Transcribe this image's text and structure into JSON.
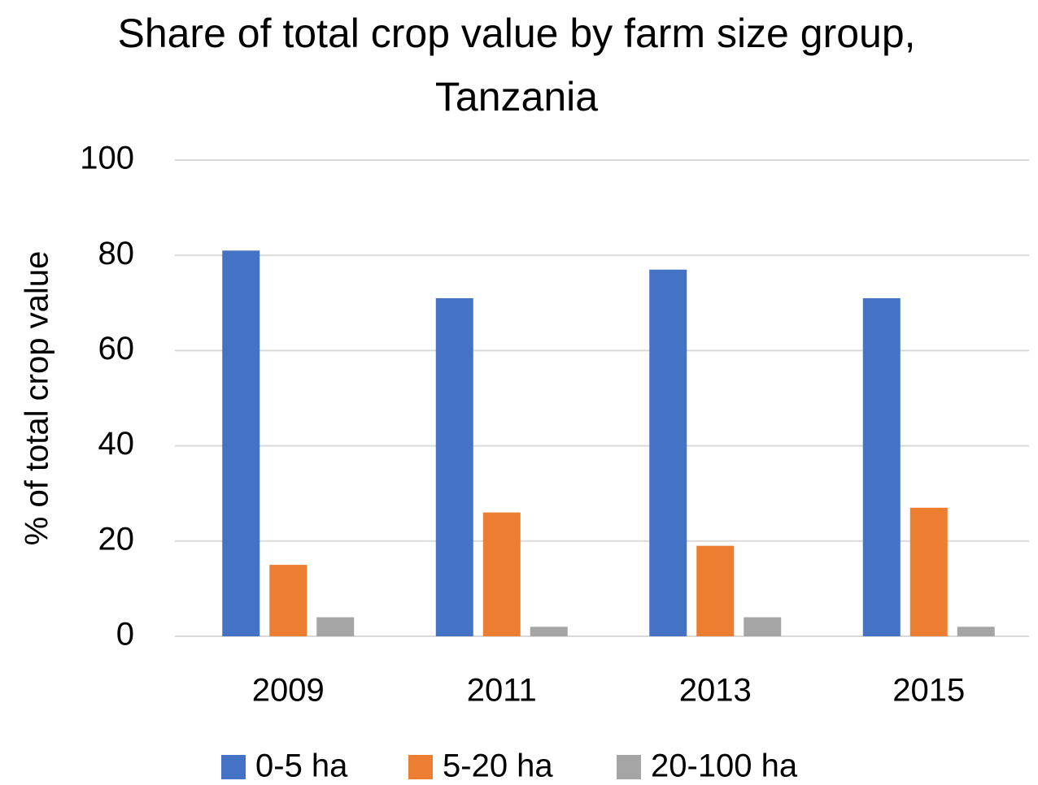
{
  "chart_data": {
    "type": "bar",
    "title": "Share of total crop value by farm size group, Tanzania",
    "y_label": "% of total crop value",
    "categories": [
      "2009",
      "2011",
      "2013",
      "2015"
    ],
    "series": [
      {
        "name": "0-5 ha",
        "color": "#4472c4",
        "values": [
          81,
          71,
          77,
          71
        ]
      },
      {
        "name": "5-20 ha",
        "color": "#ed7d31",
        "values": [
          15,
          26,
          19,
          27
        ]
      },
      {
        "name": "20-100 ha",
        "color": "#a5a5a5",
        "values": [
          4,
          2,
          4,
          2
        ]
      }
    ],
    "ylim": [
      0,
      100
    ],
    "yticks": [
      0,
      20,
      40,
      60,
      80,
      100
    ],
    "grid": true,
    "legend": "bottom"
  }
}
